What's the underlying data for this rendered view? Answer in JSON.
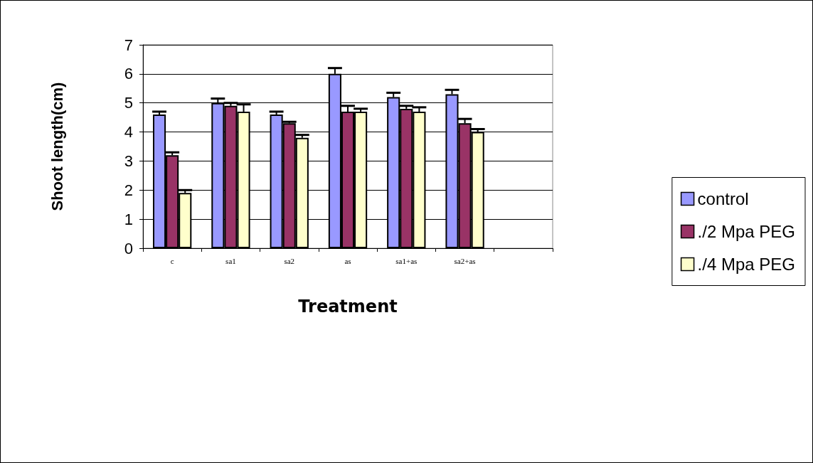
{
  "chart_data": {
    "type": "bar",
    "xlabel": "Treatment",
    "ylabel": "Shoot length(cm)",
    "categories": [
      "c",
      "sa1",
      "sa2",
      "as",
      "sa1+as",
      "sa2+as",
      null
    ],
    "series": [
      {
        "name": "control",
        "color": "#9999ff",
        "values": [
          4.6,
          5.0,
          4.6,
          6.0,
          5.2,
          5.3,
          null
        ],
        "errors": [
          [
            4.6,
            4.7
          ],
          [
            5.0,
            5.15
          ],
          [
            4.6,
            4.7
          ],
          [
            6.0,
            6.2
          ],
          [
            5.2,
            5.35
          ],
          [
            5.3,
            5.45
          ],
          null
        ]
      },
      {
        "name": "./2 Mpa PEG",
        "color": "#993366",
        "values": [
          3.2,
          4.9,
          4.3,
          4.7,
          4.8,
          4.3,
          null
        ],
        "errors": [
          [
            3.2,
            3.3
          ],
          [
            4.9,
            5.0
          ],
          [
            4.3,
            4.35
          ],
          [
            4.7,
            4.9
          ],
          [
            4.8,
            4.9
          ],
          [
            4.3,
            4.45
          ],
          null
        ]
      },
      {
        "name": "./4 Mpa PEG",
        "color": "#ffffcc",
        "values": [
          1.9,
          4.7,
          3.8,
          4.7,
          4.7,
          4.0,
          null
        ],
        "errors": [
          [
            1.9,
            2.0
          ],
          [
            4.7,
            4.95
          ],
          [
            3.8,
            3.9
          ],
          [
            4.7,
            4.8
          ],
          [
            4.7,
            4.85
          ],
          [
            4.0,
            4.1
          ],
          null
        ]
      }
    ],
    "ylim": [
      0,
      7
    ],
    "yticks": [
      0,
      1,
      2,
      3,
      4,
      5,
      6,
      7
    ],
    "grid": "y",
    "legend": "right"
  }
}
